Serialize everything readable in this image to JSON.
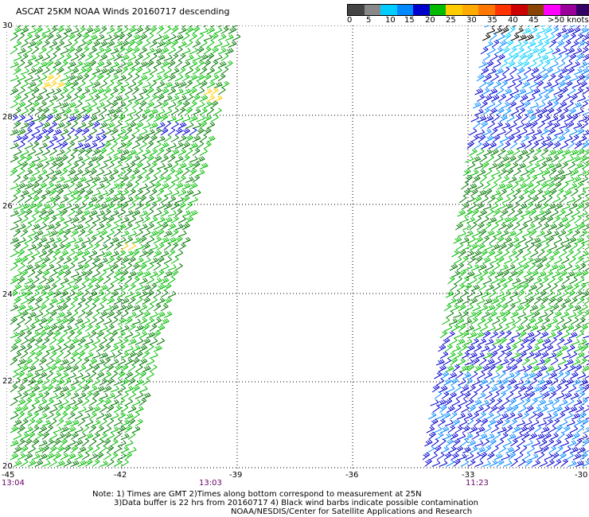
{
  "title": "ASCAT 25KM NOAA Winds 20160717 descending",
  "legend": {
    "colors": [
      "#444444",
      "#888888",
      "#00ccff",
      "#0088ff",
      "#0000cc",
      "#00bb00",
      "#ffcc00",
      "#ffaa00",
      "#ff7700",
      "#ff3300",
      "#cc0000",
      "#884400",
      "#ff00ff",
      "#990099",
      "#330066"
    ],
    "labels": [
      "0",
      "5",
      "10",
      "15",
      "20",
      "25",
      "30",
      "35",
      "40",
      "45",
      ">50 knots"
    ]
  },
  "map": {
    "lat_labels": [
      "30",
      "28",
      "26",
      "24",
      "22",
      "20"
    ],
    "lon_labels": [
      "-45",
      "-42",
      "-39",
      "-36",
      "-33",
      "-30"
    ],
    "time_labels": [
      "13:04",
      "13:03",
      "11:23"
    ]
  },
  "notes": {
    "line1": "Note: 1) Times are GMT 2)Times along bottom correspond to measurement at 25N",
    "line2": "3)Data buffer is 22 hrs from 20160717 4) Black wind barbs indicate possible contamination",
    "line3": "NOAA/NESDIS/Center for Satellite Applications and Research"
  }
}
